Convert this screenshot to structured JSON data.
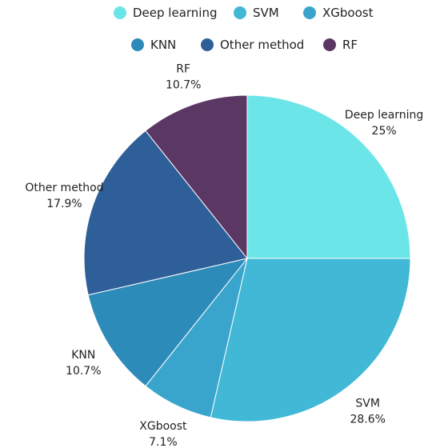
{
  "chart_data": {
    "type": "pie",
    "title": "",
    "legend_position": "top",
    "slices": [
      {
        "label": "Deep learning",
        "value": 25,
        "display": "25%",
        "color": "#6ce5e8"
      },
      {
        "label": "SVM",
        "value": 28.6,
        "display": "28.6%",
        "color": "#41b8d5"
      },
      {
        "label": "XGboost",
        "value": 7.1,
        "display": "7.1%",
        "color": "#3aa5cc"
      },
      {
        "label": "KNN",
        "value": 10.7,
        "display": "10.7%",
        "color": "#2d8bba"
      },
      {
        "label": "Other method",
        "value": 17.9,
        "display": "17.9%",
        "color": "#2f5f98"
      },
      {
        "label": "RF",
        "value": 10.7,
        "display": "10.7%",
        "color": "#5b3764"
      }
    ]
  }
}
